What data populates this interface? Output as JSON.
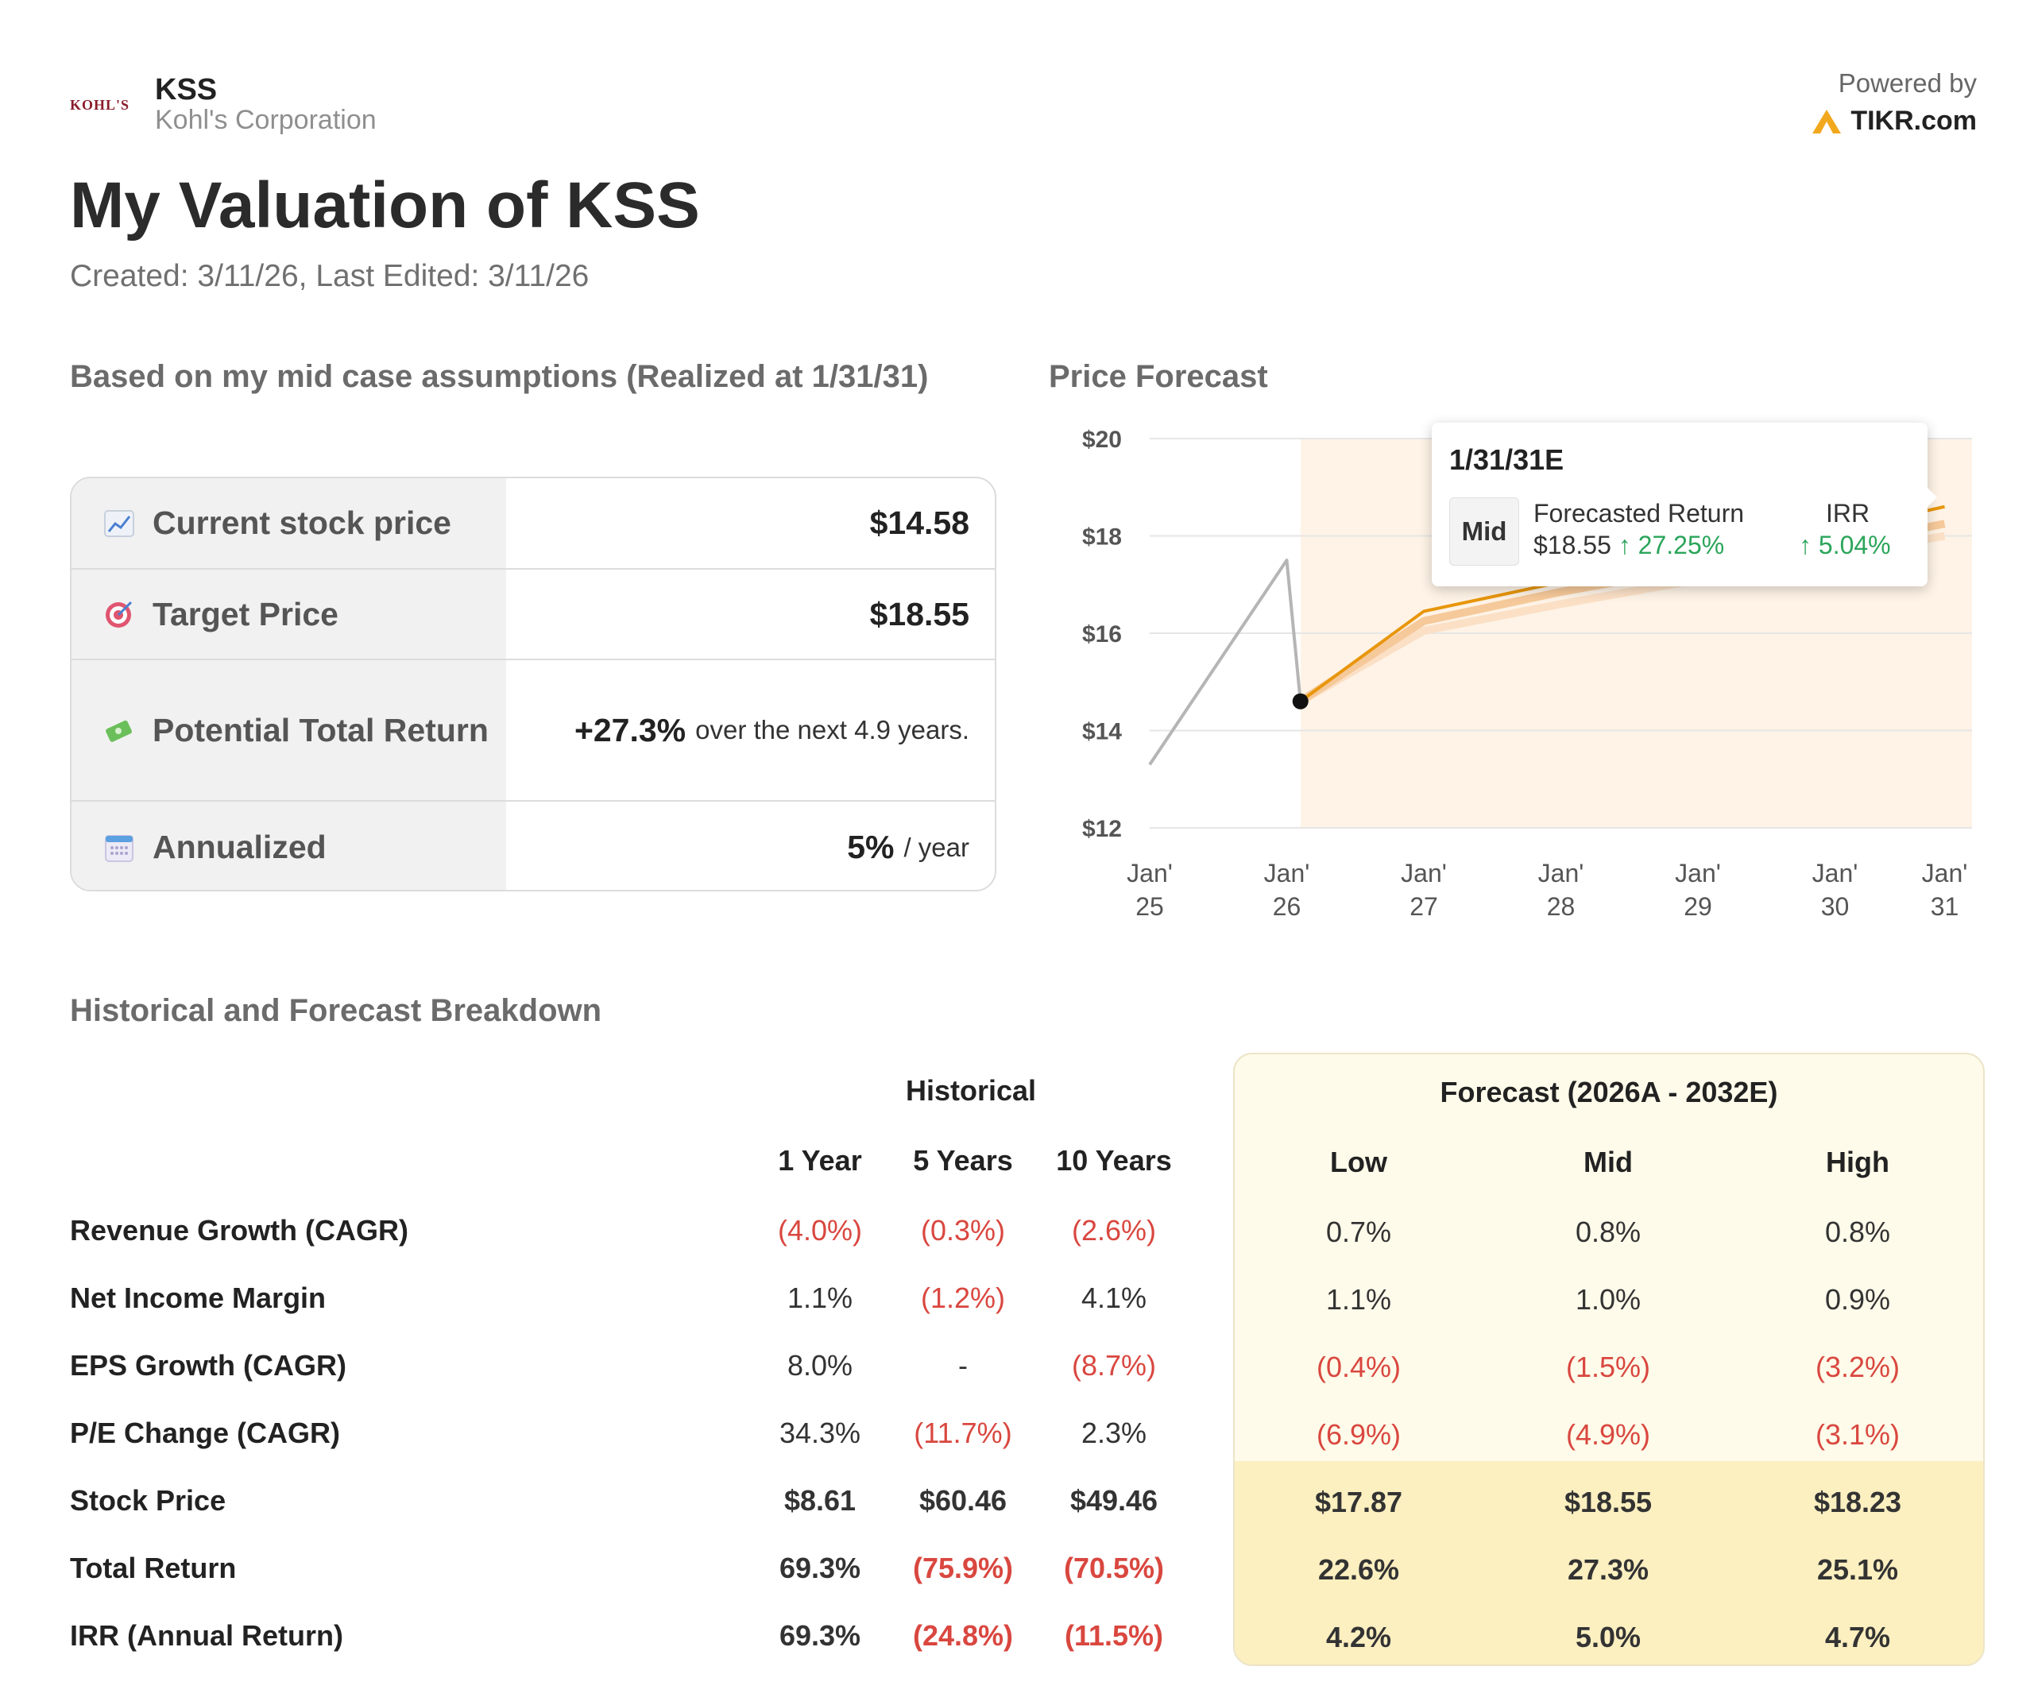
{
  "header": {
    "logo_text": "KOHL'S",
    "ticker": "KSS",
    "company": "Kohl's Corporation",
    "powered_by": "Powered by",
    "brand": "TIKR.com"
  },
  "page": {
    "title": "My Valuation of KSS",
    "subtitle": "Created: 3/11/26, Last Edited: 3/11/26"
  },
  "summary": {
    "heading": "Based on my mid case assumptions (Realized at 1/31/31)",
    "rows": [
      {
        "icon": "chart-up-icon",
        "label": "Current stock price",
        "value": "$14.58",
        "suffix": ""
      },
      {
        "icon": "target-icon",
        "label": "Target Price",
        "value": "$18.55",
        "suffix": ""
      },
      {
        "icon": "money-icon",
        "label": "Potential Total Return",
        "value": "+27.3%",
        "suffix": "over the next 4.9 years."
      },
      {
        "icon": "calendar-icon",
        "label": "Annualized",
        "value": "5%",
        "suffix": "/ year"
      }
    ]
  },
  "forecast_chart": {
    "heading": "Price Forecast",
    "tooltip": {
      "date": "1/31/31E",
      "scenario": "Mid",
      "return_label": "Forecasted Return",
      "target": "$18.55",
      "return_value": "↑ 27.25%",
      "irr_label": "IRR",
      "irr_value": "↑ 5.04%"
    }
  },
  "chart_data": {
    "type": "line",
    "title": "Price Forecast",
    "ylim": [
      12,
      20
    ],
    "y_ticks": [
      "$12",
      "$14",
      "$16",
      "$18",
      "$20"
    ],
    "x_ticks": [
      {
        "label": [
          "Jan'",
          "25"
        ],
        "x": 2025.0
      },
      {
        "label": [
          "Jan'",
          "26"
        ],
        "x": 2026.0
      },
      {
        "label": [
          "Jan'",
          "27"
        ],
        "x": 2027.0
      },
      {
        "label": [
          "Jan'",
          "28"
        ],
        "x": 2028.0
      },
      {
        "label": [
          "Jan'",
          "29"
        ],
        "x": 2029.0
      },
      {
        "label": [
          "Jan'",
          "30"
        ],
        "x": 2030.0
      },
      {
        "label": [
          "Jan'",
          "31"
        ],
        "x": 2030.8
      }
    ],
    "grid": true,
    "forecast_shade_start": 2026.1,
    "series": [
      {
        "color": "#b5b5b5",
        "points": [
          [
            2025.0,
            13.3
          ],
          [
            2026.0,
            17.5
          ],
          [
            2026.1,
            14.6
          ]
        ]
      },
      {
        "color": "#e8960c",
        "points": [
          [
            2026.1,
            14.6
          ],
          [
            2027.0,
            16.45
          ],
          [
            2028.0,
            17.05
          ],
          [
            2029.0,
            17.6
          ],
          [
            2030.0,
            18.1
          ],
          [
            2030.8,
            18.6
          ]
        ]
      },
      {
        "color": "#f6c99a",
        "points": [
          [
            2026.1,
            14.6
          ],
          [
            2027.0,
            16.25
          ],
          [
            2028.0,
            16.85
          ],
          [
            2029.0,
            17.35
          ],
          [
            2030.0,
            17.8
          ],
          [
            2030.8,
            18.25
          ]
        ]
      },
      {
        "color": "#fbe0c6",
        "points": [
          [
            2026.1,
            14.6
          ],
          [
            2027.0,
            16.05
          ],
          [
            2028.0,
            16.6
          ],
          [
            2029.0,
            17.1
          ],
          [
            2030.0,
            17.6
          ],
          [
            2030.8,
            18.0
          ]
        ]
      }
    ],
    "current_point": [
      2026.1,
      14.6
    ]
  },
  "breakdown": {
    "heading": "Historical and Forecast Breakdown",
    "historical_heading": "Historical",
    "forecast_heading": "Forecast (2026A - 2032E)",
    "hist_cols": [
      "1 Year",
      "5 Years",
      "10 Years"
    ],
    "fc_cols": [
      "Low",
      "Mid",
      "High"
    ],
    "rows": [
      {
        "label": "Revenue Growth (CAGR)",
        "hist": [
          "(4.0%)",
          "(0.3%)",
          "(2.6%)"
        ],
        "fc": [
          "0.7%",
          "0.8%",
          "0.8%"
        ]
      },
      {
        "label": "Net Income Margin",
        "hist": [
          "1.1%",
          "(1.2%)",
          "4.1%"
        ],
        "fc": [
          "1.1%",
          "1.0%",
          "0.9%"
        ]
      },
      {
        "label": "EPS Growth (CAGR)",
        "hist": [
          "8.0%",
          "-",
          "(8.7%)"
        ],
        "fc": [
          "(0.4%)",
          "(1.5%)",
          "(3.2%)"
        ]
      },
      {
        "label": "P/E Change (CAGR)",
        "hist": [
          "34.3%",
          "(11.7%)",
          "2.3%"
        ],
        "fc": [
          "(6.9%)",
          "(4.9%)",
          "(3.1%)"
        ]
      },
      {
        "label": "Stock Price",
        "hist": [
          "$8.61",
          "$60.46",
          "$49.46"
        ],
        "fc": [
          "$17.87",
          "$18.55",
          "$18.23"
        ]
      },
      {
        "label": "Total Return",
        "hist": [
          "69.3%",
          "(75.9%)",
          "(70.5%)"
        ],
        "fc": [
          "22.6%",
          "27.3%",
          "25.1%"
        ]
      },
      {
        "label": "IRR (Annual Return)",
        "hist": [
          "69.3%",
          "(24.8%)",
          "(11.5%)"
        ],
        "fc": [
          "4.2%",
          "5.0%",
          "4.7%"
        ]
      }
    ]
  }
}
